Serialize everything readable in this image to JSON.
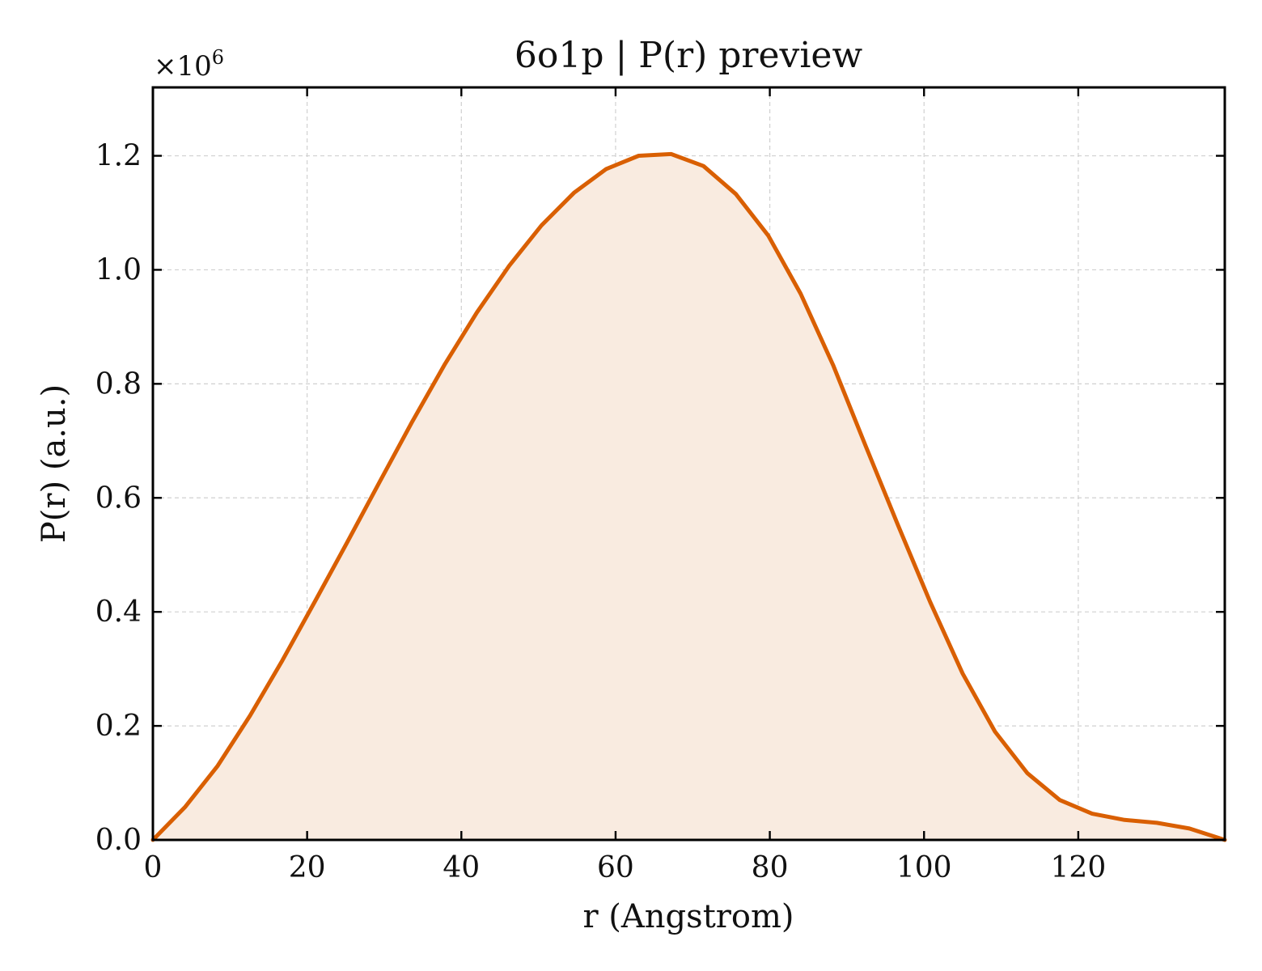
{
  "chart_data": {
    "type": "area",
    "title": "6o1p | P(r) preview",
    "xlabel": "r (Angstrom)",
    "ylabel": "P(r) (a.u.)",
    "y_multiplier_label": "×10",
    "y_multiplier_exponent": "6",
    "xlim": [
      0,
      139
    ],
    "ylim": [
      0,
      1.32
    ],
    "xticks": [
      0,
      20,
      40,
      60,
      80,
      100,
      120
    ],
    "yticks": [
      0.0,
      0.2,
      0.4,
      0.6,
      0.8,
      1.0,
      1.2
    ],
    "xtick_labels": [
      "0",
      "20",
      "40",
      "60",
      "80",
      "100",
      "120"
    ],
    "ytick_labels": [
      "0.0",
      "0.2",
      "0.4",
      "0.6",
      "0.8",
      "1.0",
      "1.2"
    ],
    "grid": true,
    "line_color": "#d95f02",
    "fill_color": "#f9ebe0",
    "series": [
      {
        "x": [
          0,
          4.2,
          8.4,
          12.6,
          16.8,
          21.0,
          25.2,
          29.4,
          33.6,
          37.8,
          42.0,
          46.2,
          50.4,
          54.6,
          58.8,
          63.0,
          67.2,
          71.4,
          75.6,
          79.8,
          84.0,
          88.2,
          92.4,
          96.6,
          100.8,
          105.0,
          109.2,
          113.4,
          117.6,
          121.8,
          126.0,
          130.2,
          134.4,
          139.0
        ],
        "values": [
          0.0,
          0.058,
          0.13,
          0.218,
          0.315,
          0.418,
          0.522,
          0.628,
          0.733,
          0.833,
          0.925,
          1.007,
          1.078,
          1.135,
          1.177,
          1.2,
          1.203,
          1.182,
          1.133,
          1.06,
          0.958,
          0.833,
          0.692,
          0.553,
          0.417,
          0.292,
          0.19,
          0.117,
          0.07,
          0.046,
          0.035,
          0.03,
          0.02,
          0.0
        ]
      }
    ]
  }
}
